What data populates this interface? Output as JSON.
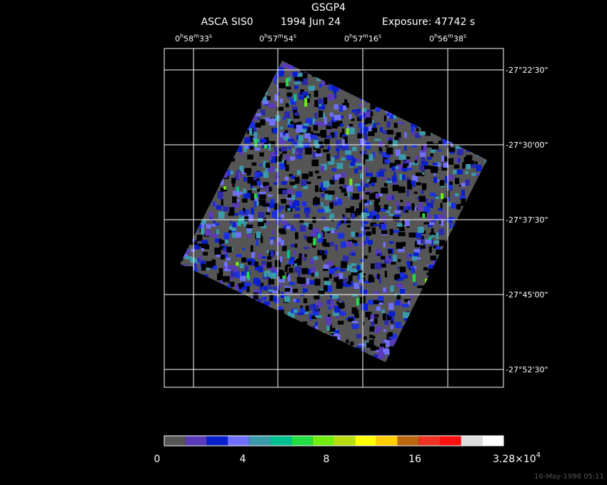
{
  "header": {
    "title": "GSGP4",
    "instrument": "ASCA SIS0",
    "date": "1994 Jun 24",
    "exposure": "Exposure: 47742 s"
  },
  "ra_labels": [
    [
      "0",
      "h",
      "58",
      "m",
      "33",
      "s"
    ],
    [
      "0",
      "h",
      "57",
      "m",
      "54",
      "s"
    ],
    [
      "0",
      "h",
      "57",
      "m",
      "16",
      "s"
    ],
    [
      "0",
      "h",
      "56",
      "m",
      "38",
      "s"
    ]
  ],
  "dec_labels": [
    "-27°22'30\"",
    "-27°30'00\"",
    "-27°37'30\"",
    "-27°45'00\"",
    "-27°52'30\""
  ],
  "colorbar": {
    "colors": [
      "#555555",
      "#5a3ab8",
      "#0a1fcc",
      "#7070ff",
      "#3a9aaa",
      "#00c090",
      "#22dd44",
      "#70ee10",
      "#b8dd10",
      "#ffff00",
      "#ffcc00",
      "#bb6611",
      "#ee3322",
      "#ff1111",
      "#dddddd",
      "#ffffff"
    ],
    "labels": [
      "0",
      "4",
      "8",
      "16"
    ],
    "max_label": {
      "mantissa": "3.28×10",
      "exponent": "4"
    }
  },
  "footer": "16-May-1998 05:11"
}
